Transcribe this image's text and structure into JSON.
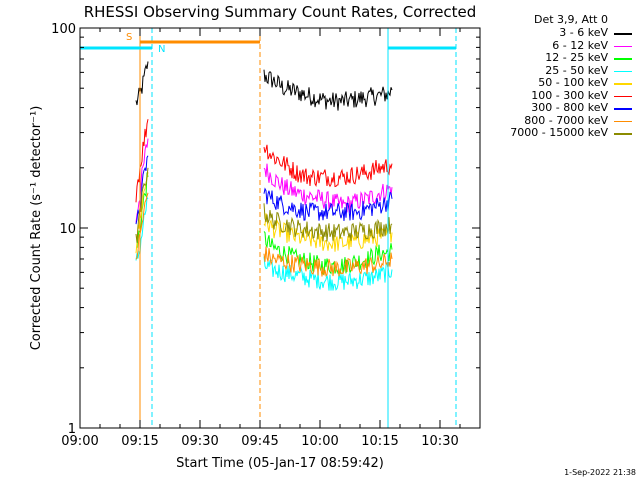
{
  "chart_data": {
    "type": "line",
    "title": "RHESSI Observing Summary Count Rates, Corrected",
    "xlabel": "Start Time (05-Jan-17 08:59:42)",
    "ylabel": "Corrected Count Rate (s⁻¹ detector⁻¹)",
    "yscale": "log",
    "ylim": [
      1,
      100
    ],
    "xlim_minutes_after_0900": [
      0,
      100
    ],
    "x_ticks": [
      "09:00",
      "09:15",
      "09:30",
      "09:45",
      "10:00",
      "10:15",
      "10:30"
    ],
    "y_ticks": [
      "1",
      "10",
      "100"
    ],
    "legend_header": "Det 3,9, Att 0",
    "legend_placement": "top-right outside",
    "grid": false,
    "series": [
      {
        "name": "3 - 6 keV",
        "color": "#000000",
        "x": [
          "09:14",
          "09:15",
          "09:16",
          "09:17",
          "09:46",
          "09:48",
          "09:51",
          "09:54",
          "09:57",
          "10:00",
          "10:03",
          "10:06",
          "10:09",
          "10:12",
          "10:15",
          "10:17",
          "10:18"
        ],
        "values": [
          42,
          46,
          55,
          68,
          58,
          55,
          50,
          48,
          46,
          44,
          43,
          43,
          44,
          45,
          46,
          47,
          49
        ]
      },
      {
        "name": "6 - 12 keV",
        "color": "#ff00ff",
        "x": [
          "09:14",
          "09:15",
          "09:16",
          "09:17",
          "09:46",
          "09:48",
          "09:51",
          "09:54",
          "09:57",
          "10:00",
          "10:03",
          "10:06",
          "10:09",
          "10:12",
          "10:15",
          "10:17",
          "10:18"
        ],
        "values": [
          11,
          15,
          21,
          28,
          20,
          18,
          16,
          15,
          14.5,
          14,
          13.5,
          13,
          13.5,
          14,
          15,
          15.5,
          16
        ]
      },
      {
        "name": "12 - 25 keV",
        "color": "#00ff00",
        "x": [
          "09:14",
          "09:15",
          "09:16",
          "09:17",
          "09:46",
          "09:48",
          "09:51",
          "09:54",
          "09:57",
          "10:00",
          "10:03",
          "10:06",
          "10:09",
          "10:12",
          "10:15",
          "10:17",
          "10:18"
        ],
        "values": [
          7.5,
          10,
          14,
          18,
          9,
          8,
          7.5,
          7,
          6.8,
          6.5,
          6.5,
          6.5,
          6.8,
          7,
          7.5,
          7.5,
          7.8
        ]
      },
      {
        "name": "25 - 50 keV",
        "color": "#00ffff",
        "x": [
          "09:14",
          "09:15",
          "09:16",
          "09:17",
          "09:46",
          "09:48",
          "09:51",
          "09:54",
          "09:57",
          "10:00",
          "10:03",
          "10:06",
          "10:09",
          "10:12",
          "10:15",
          "10:17",
          "10:18"
        ],
        "values": [
          6.5,
          8,
          11,
          14,
          6.5,
          6.2,
          6,
          5.8,
          5.6,
          5.5,
          5.4,
          5.4,
          5.5,
          5.6,
          5.8,
          6,
          6.2
        ]
      },
      {
        "name": "50 - 100 keV",
        "color": "#ffd700",
        "x": [
          "09:14",
          "09:15",
          "09:16",
          "09:17",
          "09:46",
          "09:48",
          "09:51",
          "09:54",
          "09:57",
          "10:00",
          "10:03",
          "10:06",
          "10:09",
          "10:12",
          "10:15",
          "10:17",
          "10:18"
        ],
        "values": [
          8,
          11,
          15,
          19,
          11,
          10,
          9.5,
          9,
          8.8,
          8.5,
          8.4,
          8.4,
          8.6,
          8.8,
          9,
          9.2,
          9.5
        ]
      },
      {
        "name": "100 - 300 keV",
        "color": "#ff0000",
        "x": [
          "09:14",
          "09:15",
          "09:16",
          "09:17",
          "09:46",
          "09:48",
          "09:51",
          "09:54",
          "09:57",
          "10:00",
          "10:03",
          "10:06",
          "10:09",
          "10:12",
          "10:15",
          "10:17",
          "10:18"
        ],
        "values": [
          15,
          20,
          27,
          35,
          26,
          23,
          21,
          19,
          18,
          18,
          18,
          18,
          18.5,
          19,
          20,
          20.5,
          21
        ]
      },
      {
        "name": "300 - 800 keV",
        "color": "#0000ff",
        "x": [
          "09:14",
          "09:15",
          "09:16",
          "09:17",
          "09:46",
          "09:48",
          "09:51",
          "09:54",
          "09:57",
          "10:00",
          "10:03",
          "10:06",
          "10:09",
          "10:12",
          "10:15",
          "10:17",
          "10:18"
        ],
        "values": [
          9.5,
          13,
          18,
          23,
          15,
          14,
          13,
          12.5,
          12,
          12,
          12,
          12,
          12,
          12.5,
          13,
          13.5,
          14
        ]
      },
      {
        "name": "800 - 7000 keV",
        "color": "#ff8c00",
        "x": [
          "09:14",
          "09:15",
          "09:16",
          "09:17",
          "09:46",
          "09:48",
          "09:51",
          "09:54",
          "09:57",
          "10:00",
          "10:03",
          "10:06",
          "10:09",
          "10:12",
          "10:15",
          "10:17",
          "10:18"
        ],
        "values": [
          7,
          9,
          12,
          15,
          7.5,
          7,
          6.8,
          6.6,
          6.5,
          6.4,
          6.3,
          6.3,
          6.4,
          6.5,
          6.6,
          6.8,
          7
        ]
      },
      {
        "name": "7000 - 15000 keV",
        "color": "#8b8b00",
        "x": [
          "09:14",
          "09:15",
          "09:16",
          "09:17",
          "09:46",
          "09:48",
          "09:51",
          "09:54",
          "09:57",
          "10:00",
          "10:03",
          "10:06",
          "10:09",
          "10:12",
          "10:15",
          "10:17",
          "10:18"
        ],
        "values": [
          8.5,
          11.5,
          16,
          20,
          12,
          11,
          10.5,
          10,
          9.8,
          9.6,
          9.5,
          9.5,
          9.6,
          9.8,
          10,
          10.2,
          10.5
        ]
      }
    ],
    "annotations": {
      "saa_label": "S",
      "night_label": "N",
      "saa_color": "#ff8c00",
      "night_color": "#00e5ff",
      "saa_interval": [
        "09:15",
        "09:45"
      ],
      "night_intervals": [
        [
          "09:00",
          "09:18"
        ],
        [
          "10:17",
          "10:34"
        ]
      ],
      "night_solid_lines": [
        "09:00",
        "10:17"
      ],
      "night_dashed_lines": [
        "09:18",
        "10:34"
      ],
      "saa_solid_lines": [
        "09:15"
      ],
      "saa_dashed_lines": [
        "09:45"
      ]
    }
  },
  "timestamp": "1-Sep-2022 21:38"
}
